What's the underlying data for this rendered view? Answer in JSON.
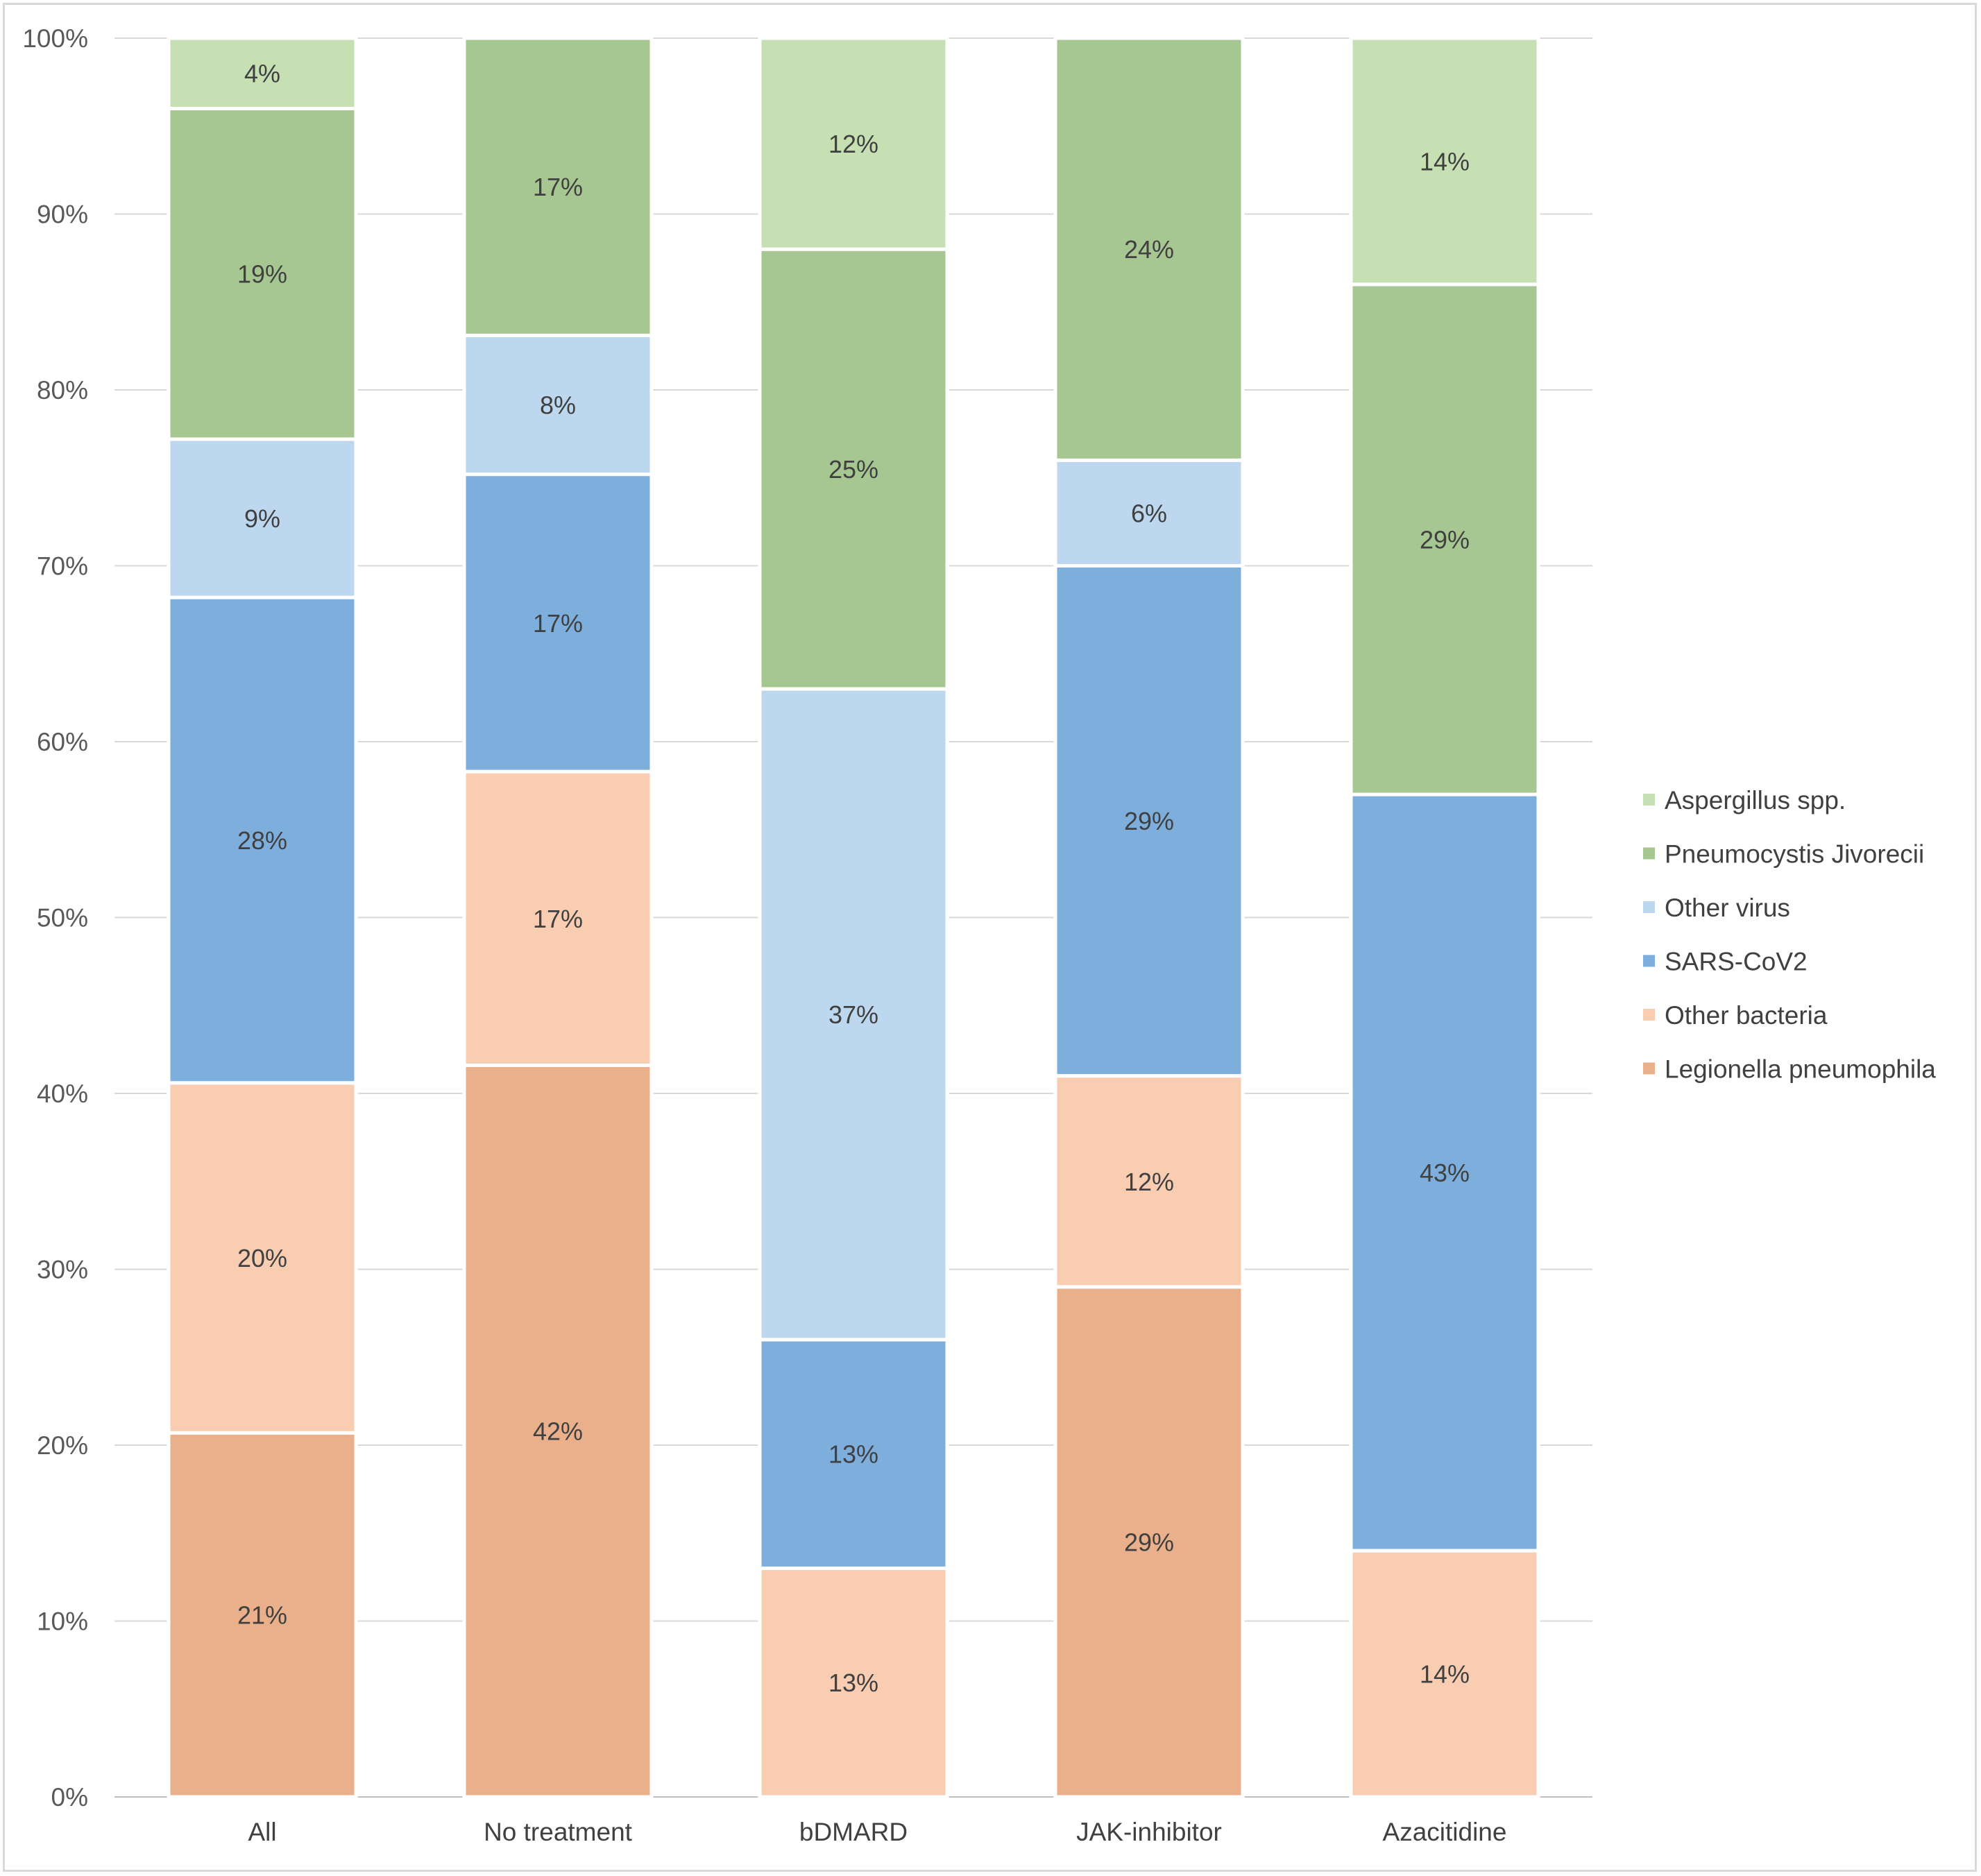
{
  "chart_data": {
    "type": "bar",
    "stacked": true,
    "percent_stacked": true,
    "title": "",
    "xlabel": "",
    "ylabel": "",
    "ylim": [
      0,
      100
    ],
    "y_ticks": [
      "0%",
      "10%",
      "20%",
      "30%",
      "40%",
      "50%",
      "60%",
      "70%",
      "80%",
      "90%",
      "100%"
    ],
    "grid": true,
    "legend_position": "right",
    "categories": [
      "All",
      "No treatment",
      "bDMARD",
      "JAK-inhibitor",
      "Azacitidine"
    ],
    "series": [
      {
        "name": "Legionella pneumophila",
        "color": "#EAB08B",
        "values": [
          20.7,
          41.6,
          0,
          29.0,
          0
        ],
        "labels": [
          "21%",
          "42%",
          "",
          "29%",
          ""
        ]
      },
      {
        "name": "Other bacteria",
        "color": "#F8CDB2",
        "values": [
          19.9,
          16.7,
          13.0,
          12.0,
          14.0
        ],
        "labels": [
          "20%",
          "17%",
          "13%",
          "12%",
          "14%"
        ]
      },
      {
        "name": "SARS-CoV2",
        "color": "#7DAEDC",
        "values": [
          27.6,
          16.9,
          13.0,
          29.0,
          43.0
        ],
        "labels": [
          "28%",
          "17%",
          "13%",
          "29%",
          "43%"
        ]
      },
      {
        "name": "Other virus",
        "color": "#BDD7EE",
        "values": [
          9.0,
          7.9,
          37.0,
          6.0,
          0
        ],
        "labels": [
          "9%",
          "8%",
          "37%",
          "6%",
          ""
        ]
      },
      {
        "name": "Pneumocystis Jivorecii",
        "color": "#A7C792",
        "values": [
          18.8,
          16.9,
          25.0,
          24.0,
          29.0
        ],
        "labels": [
          "19%",
          "17%",
          "25%",
          "24%",
          "29%"
        ]
      },
      {
        "name": "Aspergillus spp.",
        "color": "#C6E0B4",
        "values": [
          4.0,
          0,
          12.0,
          0,
          14.0
        ],
        "labels": [
          "4%",
          "",
          "12%",
          "",
          "14%"
        ]
      }
    ]
  }
}
